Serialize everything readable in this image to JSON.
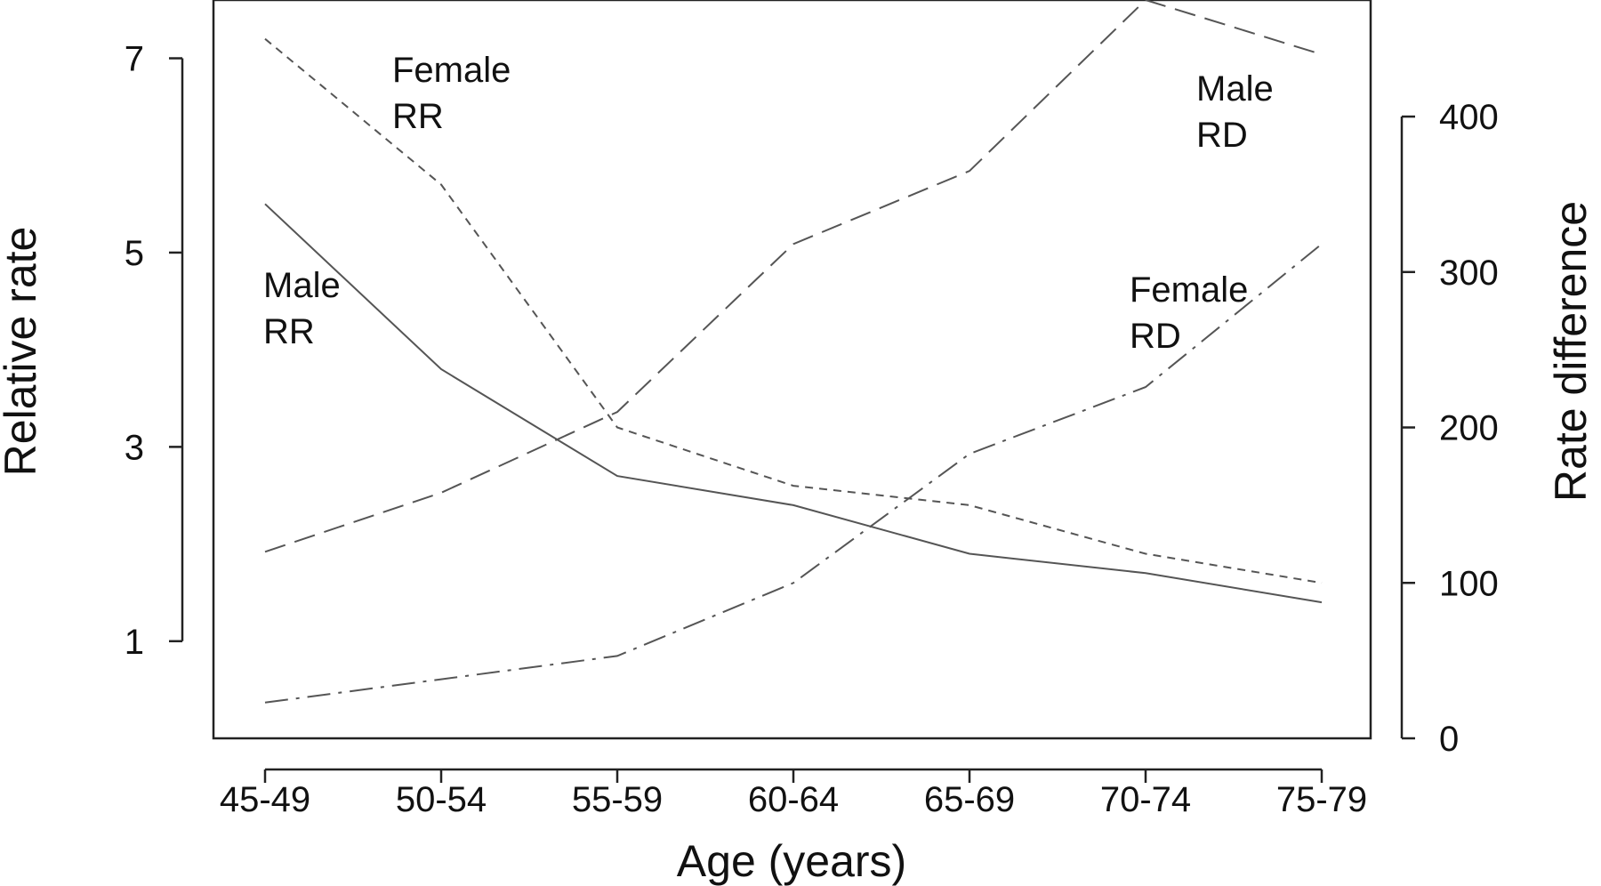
{
  "chart_data": {
    "type": "line",
    "title": "",
    "xlabel": "Age (years)",
    "ylabel": "Relative rate",
    "y2label": "Rate difference",
    "categories": [
      "45-49",
      "50-54",
      "55-59",
      "60-64",
      "65-69",
      "70-74",
      "75-79"
    ],
    "ylim": [
      0.0,
      7.6
    ],
    "y2lim": [
      0,
      475
    ],
    "yticks": [
      1,
      3,
      5,
      7
    ],
    "y2ticks": [
      0,
      100,
      200,
      300,
      400
    ],
    "grid": false,
    "legend": "none",
    "series": [
      {
        "name": "Male RR",
        "label": [
          "Male",
          "RR"
        ],
        "axis": "left",
        "style": "solid",
        "values": [
          5.5,
          3.8,
          2.7,
          2.4,
          1.9,
          1.7,
          1.4
        ]
      },
      {
        "name": "Female RR",
        "label": [
          "Female",
          "RR"
        ],
        "axis": "left",
        "style": "short-dash",
        "values": [
          7.2,
          5.7,
          3.2,
          2.6,
          2.4,
          1.9,
          1.6
        ]
      },
      {
        "name": "Male RD",
        "label": [
          "Male",
          "RD"
        ],
        "axis": "right",
        "style": "long-dash",
        "values": [
          120,
          158,
          210,
          318,
          365,
          475,
          440
        ]
      },
      {
        "name": "Female RD",
        "label": [
          "Female",
          "RD"
        ],
        "axis": "right",
        "style": "dash-dot",
        "values": [
          23,
          38,
          53,
          100,
          183,
          226,
          318
        ]
      }
    ]
  }
}
